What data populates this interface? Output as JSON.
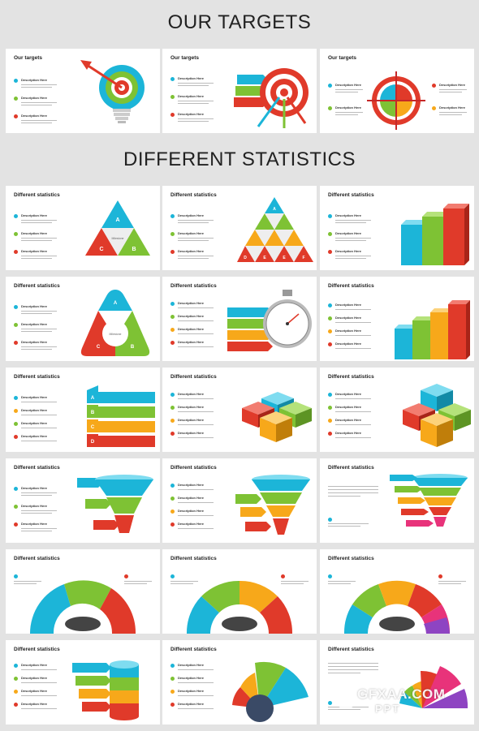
{
  "headings": {
    "targets": "OUR TARGETS",
    "statistics": "DIFFERENT STATISTICS"
  },
  "slide_titles": {
    "targets": "Our targets",
    "statistics": "Different statistics"
  },
  "item_label": "Description Here",
  "shape_letters": {
    "a": "A",
    "b": "B",
    "c": "C",
    "d": "D",
    "e": "E",
    "f": "F"
  },
  "segment_label": "Milestone",
  "colors": {
    "cyan": "#1cb5d8",
    "green": "#7ec234",
    "red": "#e03a2a",
    "orange": "#f7a81a",
    "magenta": "#e8337a",
    "purple": "#8e44c2",
    "navy": "#3a4a66"
  },
  "watermark": {
    "site": "GFXAA.COM",
    "sub": "PPT"
  }
}
